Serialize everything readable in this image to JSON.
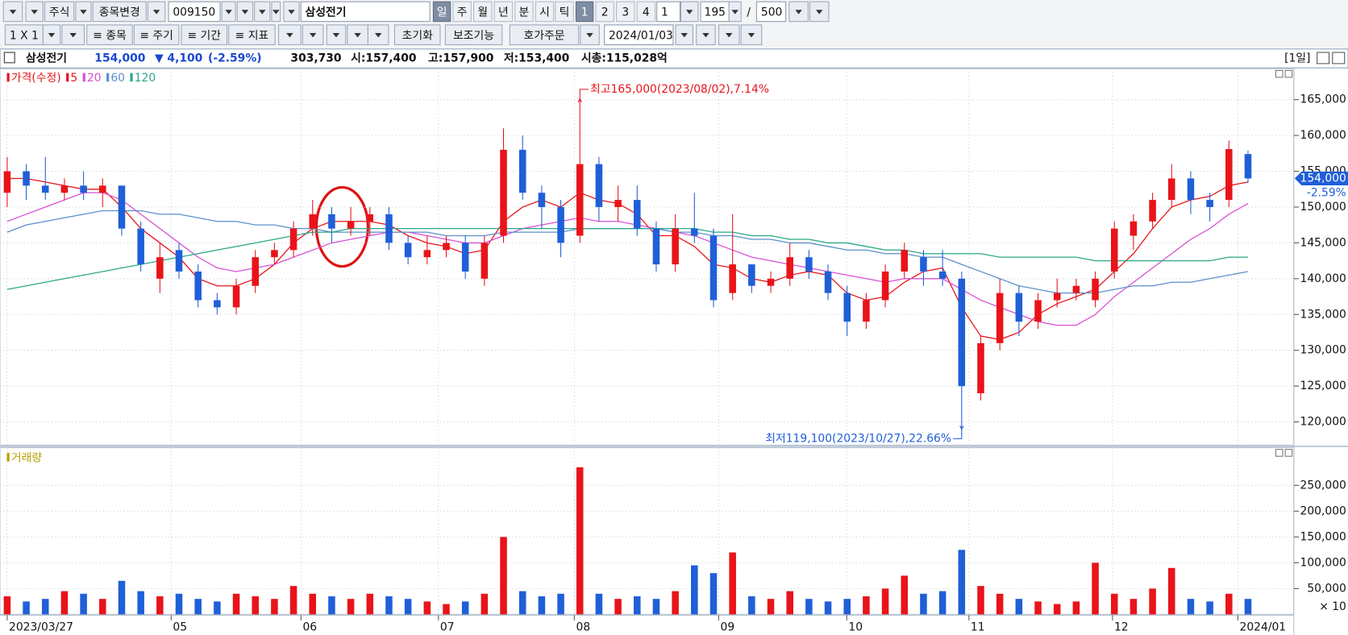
{
  "toolbar": {
    "row1": [
      "주식",
      "종목변경",
      "009150",
      "삼성전기",
      "일",
      "주",
      "월",
      "년",
      "분",
      "시",
      "틱",
      "1",
      "2",
      "3",
      "4",
      "1",
      "195",
      "/",
      "500"
    ],
    "row2": [
      "1 X 1",
      "≡ 종목",
      "≡ 주기",
      "≡ 기간",
      "≡ 지표",
      "초기화",
      "보조기능",
      "호가주문",
      "2024/01/03"
    ]
  },
  "header": {
    "name": "삼성전기",
    "price": "154,000",
    "change": "▼ 4,100",
    "change_pct": "(-2.59%)",
    "volume": "303,730",
    "open": "시:157,400",
    "high": "고:157,900",
    "low": "저:153,400",
    "market_cap": "시총:115,028억",
    "period": "[1일]"
  },
  "chart_data": [
    {
      "type": "candlestick",
      "candles": {
        "name": "가격(수정)",
        "up_color": "#e8141a",
        "down_color": "#1f5fd8",
        "open": [
          152000,
          155000,
          153000,
          152000,
          153000,
          152000,
          153000,
          147000,
          140000,
          144000,
          141000,
          137000,
          136000,
          139000,
          143000,
          144000,
          147000,
          149000,
          147000,
          148000,
          149000,
          145000,
          143000,
          144000,
          145000,
          140000,
          146000,
          158000,
          152000,
          150000,
          146000,
          156000,
          150000,
          151000,
          147000,
          142000,
          147000,
          146000,
          138000,
          142000,
          139000,
          140000,
          143000,
          141000,
          138000,
          134000,
          137000,
          141000,
          143000,
          141000,
          140000,
          124000,
          131000,
          138000,
          134000,
          137000,
          138000,
          137000,
          141000,
          146000,
          148000,
          151000,
          154000,
          151000,
          151000,
          157400
        ],
        "high": [
          157000,
          156000,
          157000,
          154000,
          155000,
          154000,
          153000,
          148000,
          145000,
          145000,
          142000,
          138000,
          140000,
          144000,
          145000,
          148000,
          151000,
          150000,
          150000,
          150000,
          150000,
          146000,
          146000,
          146000,
          146000,
          146000,
          161000,
          160000,
          153000,
          151000,
          165000,
          157000,
          153000,
          153000,
          148000,
          149000,
          152000,
          147000,
          149000,
          142000,
          141000,
          145000,
          144000,
          142000,
          139000,
          138000,
          142000,
          145000,
          144000,
          144000,
          141000,
          132000,
          140000,
          139000,
          138000,
          140000,
          140000,
          141000,
          148000,
          149000,
          152000,
          156000,
          155000,
          152000,
          159300,
          157900
        ],
        "low": [
          150000,
          151000,
          151000,
          151000,
          151000,
          150000,
          146000,
          141000,
          138000,
          140000,
          136000,
          135000,
          135000,
          138000,
          142000,
          143000,
          146000,
          145000,
          146000,
          146000,
          144000,
          142000,
          142000,
          143000,
          140000,
          139000,
          145000,
          151000,
          147000,
          143000,
          145000,
          148000,
          148000,
          146000,
          141000,
          141000,
          145000,
          136000,
          137000,
          138000,
          138000,
          139000,
          140000,
          137000,
          132000,
          133000,
          136000,
          140000,
          139000,
          139000,
          119100,
          123000,
          130000,
          132000,
          133000,
          136000,
          137000,
          136000,
          140000,
          144000,
          147000,
          150000,
          149000,
          148000,
          150000,
          153400
        ],
        "close": [
          155000,
          153000,
          152000,
          153000,
          152000,
          153000,
          147000,
          142000,
          143000,
          141000,
          137000,
          136000,
          139000,
          143000,
          144000,
          147000,
          149000,
          147000,
          148000,
          149000,
          145000,
          143000,
          144000,
          145000,
          141000,
          145000,
          158000,
          152000,
          150000,
          145000,
          156000,
          150000,
          151000,
          147000,
          142000,
          147000,
          146000,
          137000,
          142000,
          139000,
          140000,
          143000,
          141000,
          138000,
          134000,
          137000,
          141000,
          144000,
          141000,
          140000,
          125000,
          131000,
          138000,
          134000,
          137000,
          138000,
          139000,
          140000,
          147000,
          148000,
          151000,
          154000,
          151000,
          150000,
          158100,
          154000
        ]
      },
      "series": [
        {
          "name": "5",
          "color": "#e8141a",
          "values": [
            154000,
            154000,
            153500,
            153000,
            152500,
            152500,
            150000,
            147000,
            145000,
            143000,
            140000,
            139000,
            139000,
            140000,
            142000,
            145000,
            147000,
            148000,
            148000,
            148000,
            147500,
            146000,
            145000,
            144500,
            143500,
            144000,
            148000,
            150000,
            151000,
            150000,
            152000,
            151000,
            150500,
            149000,
            146000,
            146000,
            144500,
            142000,
            141500,
            140000,
            139500,
            140500,
            141000,
            140500,
            138000,
            137000,
            137500,
            139500,
            141000,
            141500,
            136000,
            132000,
            131500,
            132500,
            135000,
            136500,
            137500,
            138500,
            141000,
            143500,
            147000,
            150000,
            151000,
            151500,
            153000,
            153500
          ]
        },
        {
          "name": "20",
          "color": "#d94fd6",
          "values": [
            148000,
            149000,
            150000,
            151000,
            152000,
            152000,
            151000,
            149000,
            147000,
            145000,
            143000,
            141500,
            141000,
            141500,
            142000,
            143000,
            144000,
            145000,
            145500,
            146000,
            146500,
            146500,
            146000,
            145500,
            145000,
            145000,
            146000,
            147000,
            147500,
            148000,
            148500,
            148000,
            148000,
            147500,
            147000,
            146500,
            146000,
            145000,
            144000,
            143000,
            142500,
            142000,
            141500,
            141000,
            140500,
            140000,
            139500,
            140000,
            140000,
            140000,
            138500,
            137000,
            136000,
            135000,
            134000,
            133500,
            133500,
            135000,
            137500,
            139500,
            141500,
            143500,
            145500,
            147000,
            149000,
            150500
          ]
        },
        {
          "name": "60",
          "color": "#5b8fc9",
          "values": [
            146500,
            147500,
            148000,
            148500,
            149000,
            149500,
            149500,
            149500,
            149000,
            149000,
            148500,
            148000,
            148000,
            147500,
            147500,
            147000,
            147000,
            146500,
            146500,
            146500,
            146500,
            146500,
            146500,
            146000,
            146000,
            146000,
            146500,
            146500,
            146500,
            146500,
            147000,
            147000,
            147000,
            147000,
            147000,
            146500,
            146500,
            146000,
            146000,
            145500,
            145500,
            145000,
            145000,
            144500,
            144000,
            144000,
            143500,
            143500,
            143000,
            143000,
            142000,
            141000,
            140000,
            139000,
            138500,
            138000,
            138000,
            138000,
            138500,
            139000,
            139000,
            139500,
            139500,
            140000,
            140500,
            141000
          ]
        },
        {
          "name": "120",
          "color": "#2aa889",
          "values": [
            138500,
            139000,
            139500,
            140000,
            140500,
            141000,
            141500,
            142000,
            142500,
            143000,
            143500,
            144000,
            144500,
            145000,
            145500,
            146000,
            146500,
            146500,
            147000,
            147000,
            147000,
            147000,
            147000,
            147000,
            147000,
            147000,
            147000,
            147000,
            147000,
            147000,
            147000,
            147000,
            147000,
            147000,
            147000,
            147000,
            147000,
            146500,
            146500,
            146000,
            146000,
            145500,
            145500,
            145000,
            145000,
            144500,
            144000,
            144000,
            143500,
            143500,
            143500,
            143500,
            143000,
            143000,
            143000,
            143000,
            143000,
            142500,
            142500,
            142500,
            142500,
            142500,
            142500,
            142500,
            143000,
            143000
          ]
        }
      ],
      "annotations": {
        "high": "최고165,000(2023/08/02),7.14%",
        "low": "최저119,100(2023/10/27),22.66%"
      },
      "last_label": "154,000",
      "change_label": "-2.59%",
      "xlim": [
        -0.15,
        67.4
      ],
      "xticks": [
        {
          "value": 0,
          "label": "2023/03/27"
        },
        {
          "value": 8.59,
          "label": "05"
        },
        {
          "value": 15.39,
          "label": "06"
        },
        {
          "value": 22.59,
          "label": "07"
        },
        {
          "value": 29.71,
          "label": "08"
        },
        {
          "value": 37.27,
          "label": "09"
        },
        {
          "value": 43.98,
          "label": "10"
        },
        {
          "value": 50.38,
          "label": "11"
        },
        {
          "value": 57.9,
          "label": "12"
        },
        {
          "value": 64.47,
          "label": "2024/01"
        }
      ],
      "ylim": [
        116760,
        169320
      ],
      "yticks": [
        {
          "value": 120000,
          "label": "120,000"
        },
        {
          "value": 125000,
          "label": "125,000"
        },
        {
          "value": 130000,
          "label": "130,000"
        },
        {
          "value": 135000,
          "label": "135,000"
        },
        {
          "value": 140000,
          "label": "140,000"
        },
        {
          "value": 145000,
          "label": "145,000"
        },
        {
          "value": 150000,
          "label": "150,000"
        },
        {
          "value": 155000,
          "label": "155,000"
        },
        {
          "value": 160000,
          "label": "160,000"
        },
        {
          "value": 165000,
          "label": "165,000"
        }
      ],
      "grid": true
    },
    {
      "type": "bar",
      "name": "거래량",
      "unit_label": "× 10",
      "values": [
        35000,
        25000,
        30000,
        45000,
        40000,
        30000,
        65000,
        45000,
        35000,
        40000,
        30000,
        25000,
        40000,
        35000,
        30000,
        55000,
        40000,
        35000,
        30000,
        40000,
        35000,
        30000,
        25000,
        20000,
        25000,
        40000,
        150000,
        45000,
        35000,
        40000,
        285000,
        40000,
        30000,
        35000,
        30000,
        45000,
        95000,
        80000,
        120000,
        35000,
        30000,
        45000,
        30000,
        25000,
        30000,
        35000,
        50000,
        75000,
        40000,
        45000,
        125000,
        55000,
        40000,
        30000,
        25000,
        20000,
        25000,
        100000,
        40000,
        30000,
        50000,
        90000,
        30000,
        25000,
        40000,
        30000
      ],
      "ylim": [
        0,
        323000
      ],
      "yticks": [
        {
          "value": 50000,
          "label": "50,000"
        },
        {
          "value": 100000,
          "label": "100,000"
        },
        {
          "value": 150000,
          "label": "150,000"
        },
        {
          "value": 200000,
          "label": "200,000"
        },
        {
          "value": 250000,
          "label": "250,000"
        }
      ],
      "grid": true
    }
  ]
}
